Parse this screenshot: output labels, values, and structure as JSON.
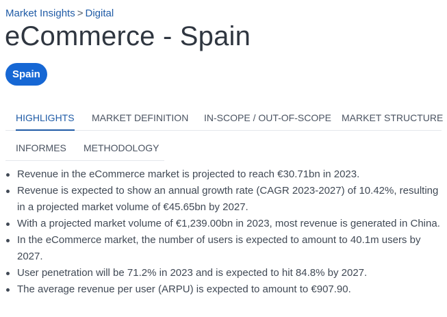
{
  "breadcrumb": {
    "parent": "Market Insights",
    "separator": ">",
    "current": "Digital"
  },
  "title": "eCommerce - Spain",
  "country_chip": "Spain",
  "tabs": [
    {
      "label": "HIGHLIGHTS",
      "active": true
    },
    {
      "label": "MARKET DEFINITION",
      "active": false
    },
    {
      "label": "IN-SCOPE / OUT-OF-SCOPE",
      "active": false
    },
    {
      "label": "MARKET STRUCTURE",
      "active": false
    },
    {
      "label": "INFORMES",
      "active": false
    },
    {
      "label": "METHODOLOGY",
      "active": false
    }
  ],
  "highlights": [
    "Revenue in the eCommerce market is projected to reach €30.71bn in 2023.",
    "Revenue is expected to show an annual growth rate (CAGR 2023-2027) of 10.42%, resulting in a projected market volume of €45.65bn by 2027.",
    "With a projected market volume of €1,239.00bn in 2023, most revenue is generated in China.",
    "In the eCommerce market, the number of users is expected to amount to 40.1m users by 2027.",
    "User penetration will be 71.2% in 2023 and is expected to hit 84.8% by 2027.",
    "The average revenue per user (ARPU) is expected to amount to €907.90."
  ],
  "colors": {
    "accent": "#1f5ba6",
    "chip": "#1667d4"
  }
}
